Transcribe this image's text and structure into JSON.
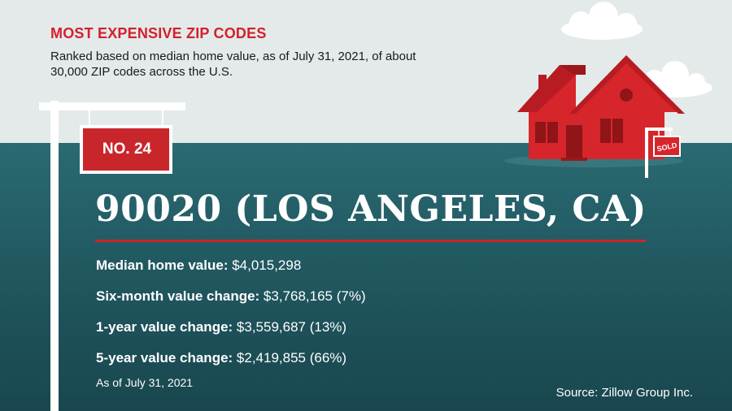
{
  "header": {
    "kicker": "MOST EXPENSIVE ZIP CODES",
    "subtitle": "Ranked based on median home value, as of July 31, 2021, of about 30,000 ZIP codes across the U.S."
  },
  "rank_sign": {
    "label": "NO. 24"
  },
  "zip": {
    "title": "90020 (LOS ANGELES, CA)"
  },
  "stats": [
    {
      "label": "Median home value:",
      "value": " $4,015,298"
    },
    {
      "label": "Six-month value change:",
      "value": " $3,768,165 (7%)"
    },
    {
      "label": "1-year value change:",
      "value": " $3,559,687 (13%)"
    },
    {
      "label": "5-year value change:",
      "value": " $2,419,855 (66%)"
    }
  ],
  "date_note": "As of July 31, 2021",
  "source": "Source: Zillow Group Inc.",
  "illustration": {
    "sold_sign_text": "SOLD"
  },
  "colors": {
    "accent_red": "#d3202b",
    "sky": "#e4eaea",
    "teal": "#245e66",
    "house_red": "#d7252c",
    "roof_red": "#b71c22"
  }
}
